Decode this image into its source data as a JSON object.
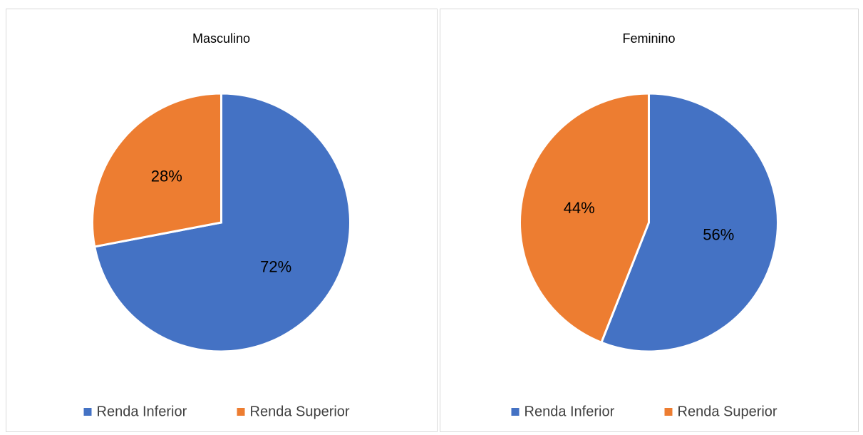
{
  "chart_data": [
    {
      "type": "pie",
      "title": "Masculino",
      "categories": [
        "Renda Inferior",
        "Renda Superior"
      ],
      "values": [
        72,
        28
      ],
      "value_labels": [
        "72%",
        "28%"
      ],
      "colors": [
        "#4472c4",
        "#ed7d31"
      ],
      "legend": "bottom"
    },
    {
      "type": "pie",
      "title": "Feminino",
      "categories": [
        "Renda Inferior",
        "Renda Superior"
      ],
      "values": [
        56,
        44
      ],
      "value_labels": [
        "56%",
        "44%"
      ],
      "colors": [
        "#4472c4",
        "#ed7d31"
      ],
      "legend": "bottom"
    }
  ]
}
